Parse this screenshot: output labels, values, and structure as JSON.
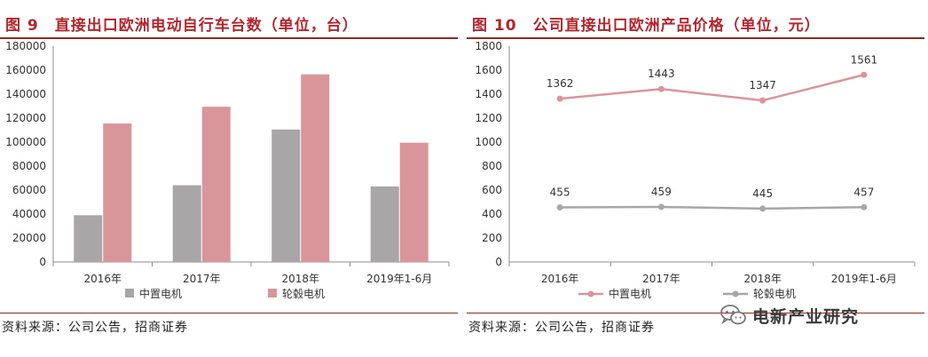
{
  "colors": {
    "gray": "#a8a6a6",
    "pink": "#d9969a",
    "title_red": "#b2262d",
    "rule": "#8a2b22"
  },
  "left": {
    "title": "图 9　直接出口欧洲电动自行车台数（单位，台）",
    "source": "资料来源：公司公告，招商证券"
  },
  "right": {
    "title": "图 10　公司直接出口欧洲产品价格（单位，元）",
    "source": "资料来源：公司公告，招商证券"
  },
  "watermark": {
    "text": "电新产业研究",
    "icon": "wechat-icon"
  },
  "chart_data": [
    {
      "type": "bar",
      "categories": [
        "2016年",
        "2017年",
        "2018年",
        "2019年1-6月"
      ],
      "series": [
        {
          "name": "中置电机",
          "values": [
            39000,
            64000,
            110500,
            63000
          ],
          "color": "#a8a6a6"
        },
        {
          "name": "轮毂电机",
          "values": [
            115500,
            129500,
            156500,
            99500
          ],
          "color": "#d9969a"
        }
      ],
      "ylim": [
        0,
        180000
      ],
      "yticks": [
        0,
        20000,
        40000,
        60000,
        80000,
        100000,
        120000,
        140000,
        160000,
        180000
      ],
      "grid": false,
      "legend": "bottom"
    },
    {
      "type": "line",
      "categories": [
        "2016年",
        "2017年",
        "2018年",
        "2019年1-6月"
      ],
      "series": [
        {
          "name": "中置电机",
          "values": [
            1362,
            1443,
            1347,
            1561
          ],
          "labels": [
            "1362",
            "1443",
            "1347",
            "1561"
          ],
          "color": "#d9969a"
        },
        {
          "name": "轮毂电机",
          "values": [
            455,
            459,
            445,
            457
          ],
          "labels": [
            "455",
            "459",
            "445",
            "457"
          ],
          "color": "#a8a6a6"
        }
      ],
      "ylim": [
        0,
        1800
      ],
      "yticks": [
        0,
        200,
        400,
        600,
        800,
        1000,
        1200,
        1400,
        1600,
        1800
      ],
      "grid": false,
      "legend": "bottom"
    }
  ]
}
